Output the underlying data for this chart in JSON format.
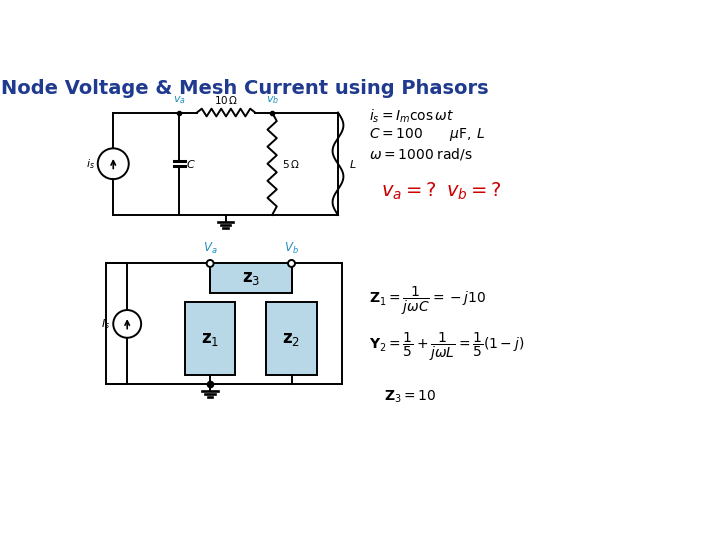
{
  "title": "Node Voltage & Mesh Current using Phasors",
  "title_color": "#1F3A8F",
  "title_fontsize": 14,
  "background_color": "#ffffff",
  "circuit_color": "#000000",
  "box_fill_color": "#B8D8E8",
  "box_edge_color": "#000000",
  "node_label_color": "#2090C0",
  "red_label_color": "#CC0000"
}
